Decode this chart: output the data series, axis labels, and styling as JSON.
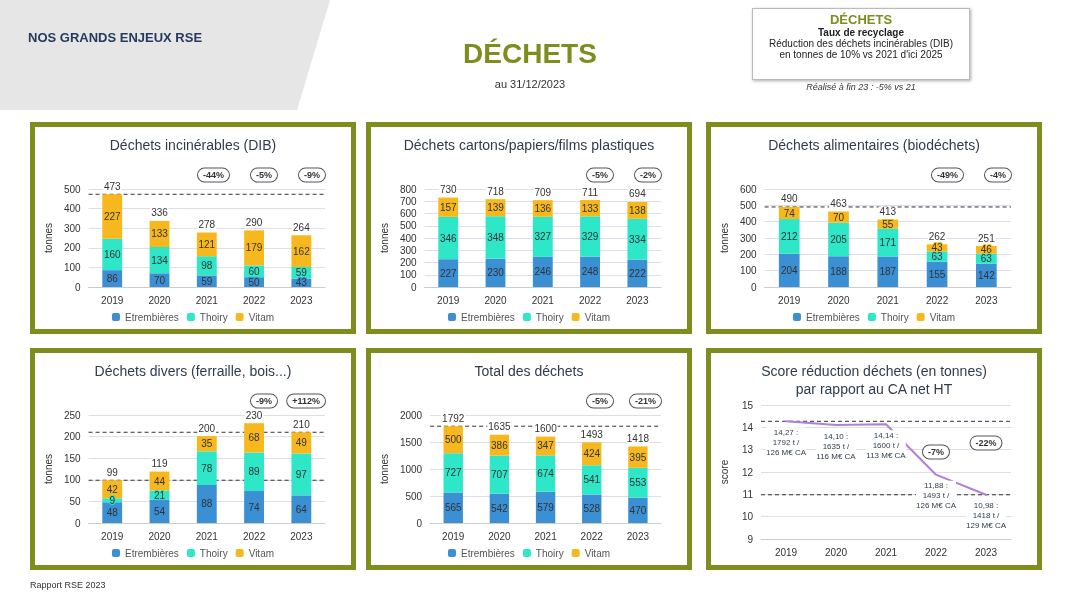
{
  "chart_data": [
    {
      "type": "other",
      "title": "DÉCHETS",
      "subtitle": "au 31/12/2023",
      "annotations": [
        "NOS GRANDS ENJEUX RSE",
        "DÉCHETS",
        "Taux de recyclage",
        "Réduction des déchets incinérables (DIB) en tonnes de 10% vs 2021 d'ici 2025",
        "Réalisé à fin 23 : -5% vs 21",
        "Rapport RSE 2023"
      ]
    },
    {
      "type": "bar",
      "stacked": true,
      "title": "Déchets incinérables (DIB)",
      "ylabel": "tonnes",
      "categories": [
        "2019",
        "2020",
        "2021",
        "2022",
        "2023"
      ],
      "series": [
        {
          "name": "Etrembières",
          "color": "#3b8fd3",
          "values": [
            86,
            70,
            59,
            50,
            43
          ]
        },
        {
          "name": "Thoiry",
          "color": "#2ee6c8",
          "values": [
            160,
            134,
            98,
            60,
            59
          ]
        },
        {
          "name": "Vitam",
          "color": "#f6b81c",
          "values": [
            227,
            133,
            121,
            179,
            162
          ]
        }
      ],
      "totals": [
        "473",
        "336",
        "278",
        "290",
        "264"
      ],
      "data_labels": true,
      "ylim": [
        0,
        500
      ],
      "yticks": [
        0,
        100,
        200,
        300,
        400,
        500
      ],
      "grid": "y",
      "legend": "bottom",
      "ref_lines": [
        {
          "axis": "y",
          "value": 473,
          "line_style": "dashed"
        }
      ],
      "annotations": [
        "-44%",
        "-5%",
        "-9%"
      ]
    },
    {
      "type": "bar",
      "stacked": true,
      "title": "Déchets cartons/papiers/films plastiques",
      "ylabel": "tonnes",
      "categories": [
        "2019",
        "2020",
        "2021",
        "2022",
        "2023"
      ],
      "series": [
        {
          "name": "Etrembières",
          "color": "#3b8fd3",
          "values": [
            227,
            230,
            246,
            248,
            222
          ]
        },
        {
          "name": "Thoiry",
          "color": "#2ee6c8",
          "values": [
            346,
            348,
            327,
            329,
            334
          ]
        },
        {
          "name": "Vitam",
          "color": "#f6b81c",
          "values": [
            157,
            139,
            136,
            133,
            138
          ]
        }
      ],
      "totals": [
        "730",
        "718",
        "709",
        "711",
        "694"
      ],
      "data_labels": true,
      "ylim": [
        0,
        800
      ],
      "yticks": [
        0,
        100,
        200,
        300,
        400,
        500,
        600,
        700,
        800
      ],
      "grid": "y",
      "legend": "bottom",
      "annotations": [
        "-5%",
        "-2%"
      ]
    },
    {
      "type": "bar",
      "stacked": true,
      "title": "Déchets alimentaires (biodéchets)",
      "ylabel": "tonnes",
      "categories": [
        "2019",
        "2020",
        "2021",
        "2022",
        "2023"
      ],
      "series": [
        {
          "name": "Etrembières",
          "color": "#3b8fd3",
          "values": [
            204,
            188,
            187,
            155,
            142
          ]
        },
        {
          "name": "Thoiry",
          "color": "#2ee6c8",
          "values": [
            212,
            205,
            171,
            63,
            63
          ]
        },
        {
          "name": "Vitam",
          "color": "#f6b81c",
          "values": [
            74,
            70,
            55,
            43,
            46
          ]
        }
      ],
      "totals": [
        "490",
        "463",
        "413",
        "262",
        "251"
      ],
      "data_labels": true,
      "ylim": [
        0,
        600
      ],
      "yticks": [
        0,
        100,
        200,
        300,
        400,
        500,
        600
      ],
      "grid": "y",
      "legend": "bottom",
      "ref_lines": [
        {
          "axis": "y",
          "value": 490,
          "line_style": "dashed"
        }
      ],
      "annotations": [
        "-49%",
        "-4%"
      ]
    },
    {
      "type": "bar",
      "stacked": true,
      "title": "Déchets divers (ferraille, bois...)",
      "ylabel": "tonnes",
      "categories": [
        "2019",
        "2020",
        "2021",
        "2022",
        "2023"
      ],
      "series": [
        {
          "name": "Etrembières",
          "color": "#3b8fd3",
          "values": [
            48,
            54,
            88,
            74,
            64
          ]
        },
        {
          "name": "Thoiry",
          "color": "#2ee6c8",
          "values": [
            9,
            21,
            78,
            89,
            97
          ]
        },
        {
          "name": "Vitam",
          "color": "#f6b81c",
          "values": [
            42,
            44,
            35,
            68,
            49
          ]
        }
      ],
      "totals": [
        "99",
        "119",
        "200",
        "230",
        "210"
      ],
      "data_labels": true,
      "ylim": [
        0,
        250
      ],
      "yticks": [
        0,
        50,
        100,
        150,
        200,
        250
      ],
      "grid": "y",
      "legend": "bottom",
      "ref_lines": [
        {
          "axis": "y",
          "value": 99,
          "line_style": "dashed"
        },
        {
          "axis": "y",
          "value": 210,
          "line_style": "dashed"
        }
      ],
      "annotations": [
        "-9%",
        "+112%"
      ]
    },
    {
      "type": "bar",
      "stacked": true,
      "title": "Total des déchets",
      "ylabel": "tonnes",
      "categories": [
        "2019",
        "2020",
        "2021",
        "2022",
        "2023"
      ],
      "series": [
        {
          "name": "Etrembières",
          "color": "#3b8fd3",
          "values": [
            565,
            542,
            579,
            528,
            470
          ]
        },
        {
          "name": "Thoiry",
          "color": "#2ee6c8",
          "values": [
            727,
            707,
            674,
            541,
            553
          ]
        },
        {
          "name": "Vitam",
          "color": "#f6b81c",
          "values": [
            500,
            386,
            347,
            424,
            395
          ]
        }
      ],
      "totals": [
        "1792",
        "1635",
        "1600",
        "1493",
        "1418"
      ],
      "data_labels": true,
      "ylim": [
        0,
        2000
      ],
      "yticks": [
        0,
        500,
        1000,
        1500,
        2000
      ],
      "grid": "y",
      "legend": "bottom",
      "ref_lines": [
        {
          "axis": "y",
          "value": 1792,
          "line_style": "dashed"
        }
      ],
      "annotations": [
        "-5%",
        "-21%"
      ]
    },
    {
      "type": "line",
      "title": "Score réduction déchets (en tonnes)\npar rapport au CA net HT",
      "ylabel": "score",
      "categories": [
        "2019",
        "2020",
        "2021",
        "2022",
        "2023"
      ],
      "series": [
        {
          "color": "#b07fd6",
          "values": [
            14.27,
            14.1,
            14.14,
            11.88,
            10.98
          ],
          "value_labels": [
            "14,27 :\n1792 t /\n126 M€ CA",
            "14,10 :\n1635 t /\n116 M€ CA",
            "14,14 :\n1600 t /\n113 M€ CA",
            "11,88 :\n1493 t /\n126 M€ CA",
            "10,98 :\n1418 t /\n129 M€ CA"
          ]
        }
      ],
      "ylim": [
        9,
        15
      ],
      "yticks": [
        9,
        10,
        11,
        12,
        13,
        14,
        15
      ],
      "grid": "y",
      "marker": "none",
      "ref_lines": [
        {
          "axis": "y",
          "value": 14.27,
          "line_style": "dashed"
        },
        {
          "axis": "y",
          "value": 10.98,
          "line_style": "dashed"
        }
      ],
      "annotations": [
        {
          "text": "-7%",
          "x": "2022",
          "y": 12.9
        },
        {
          "text": "-22%",
          "x": "2023",
          "y": 13.3
        }
      ]
    }
  ]
}
